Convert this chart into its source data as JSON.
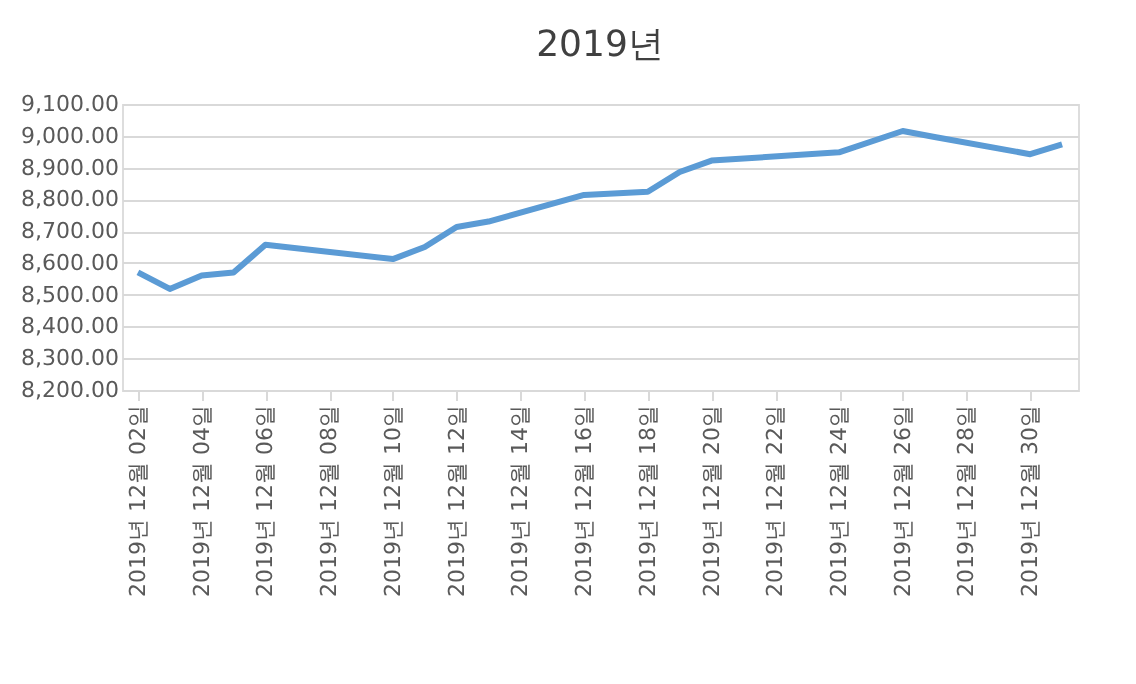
{
  "chart_data": {
    "type": "line",
    "title": "2019년",
    "x": [
      "2019-12-02",
      "2019-12-03",
      "2019-12-04",
      "2019-12-05",
      "2019-12-06",
      "2019-12-10",
      "2019-12-11",
      "2019-12-12",
      "2019-12-13",
      "2019-12-16",
      "2019-12-18",
      "2019-12-19",
      "2019-12-20",
      "2019-12-24",
      "2019-12-26",
      "2019-12-27",
      "2019-12-30",
      "2019-12-31"
    ],
    "series": [
      {
        "color": "#5b9bd5",
        "values": [
          8570,
          8518,
          8560,
          8570,
          8657,
          8612,
          8650,
          8713,
          8730,
          8814,
          8824,
          8886,
          8922,
          8948,
          9015,
          8996,
          8942,
          8973
        ]
      }
    ],
    "xlim": [
      "2019-12-01T12:00",
      "2019-12-31T12:00"
    ],
    "xticks": [
      {
        "value": "2019-12-02",
        "label": "2019년 12월 02일"
      },
      {
        "value": "2019-12-04",
        "label": "2019년 12월 04일"
      },
      {
        "value": "2019-12-06",
        "label": "2019년 12월 06일"
      },
      {
        "value": "2019-12-08",
        "label": "2019년 12월 08일"
      },
      {
        "value": "2019-12-10",
        "label": "2019년 12월 10일"
      },
      {
        "value": "2019-12-12",
        "label": "2019년 12월 12일"
      },
      {
        "value": "2019-12-14",
        "label": "2019년 12월 14일"
      },
      {
        "value": "2019-12-16",
        "label": "2019년 12월 16일"
      },
      {
        "value": "2019-12-18",
        "label": "2019년 12월 18일"
      },
      {
        "value": "2019-12-20",
        "label": "2019년 12월 20일"
      },
      {
        "value": "2019-12-22",
        "label": "2019년 12월 22일"
      },
      {
        "value": "2019-12-24",
        "label": "2019년 12월 24일"
      },
      {
        "value": "2019-12-26",
        "label": "2019년 12월 26일"
      },
      {
        "value": "2019-12-28",
        "label": "2019년 12월 28일"
      },
      {
        "value": "2019-12-30",
        "label": "2019년 12월 30일"
      }
    ],
    "ylim": [
      8200,
      9100
    ],
    "yticks": [
      {
        "value": 8200,
        "label": "8,200.00"
      },
      {
        "value": 8300,
        "label": "8,300.00"
      },
      {
        "value": 8400,
        "label": "8,400.00"
      },
      {
        "value": 8500,
        "label": "8,500.00"
      },
      {
        "value": 8600,
        "label": "8,600.00"
      },
      {
        "value": 8700,
        "label": "8,700.00"
      },
      {
        "value": 8800,
        "label": "8,800.00"
      },
      {
        "value": 8900,
        "label": "8,900.00"
      },
      {
        "value": 9000,
        "label": "9,000.00"
      },
      {
        "value": 9100,
        "label": "9,100.00"
      }
    ],
    "grid": "y",
    "marker": "none",
    "line_style": "solid"
  }
}
